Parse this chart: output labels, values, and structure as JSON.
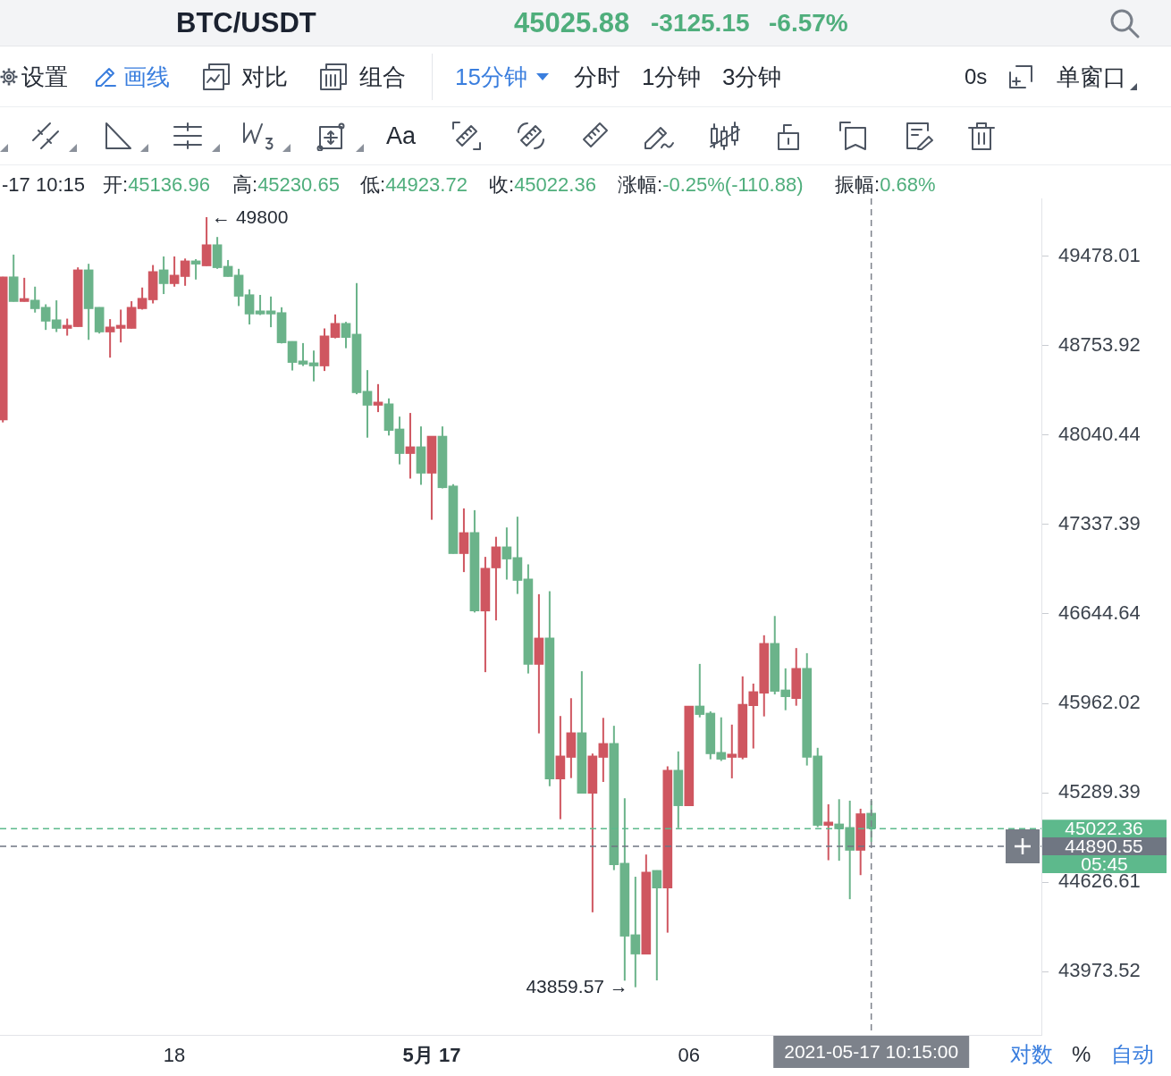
{
  "chart_data": {
    "type": "candlestick",
    "title": "BTC/USDT",
    "x": [
      "2021-05-16T14:00",
      "2021-05-16T14:15",
      "2021-05-16T14:30",
      "2021-05-16T14:45",
      "2021-05-16T15:00",
      "2021-05-16T15:15",
      "2021-05-16T15:30",
      "2021-05-16T15:45",
      "2021-05-16T16:00",
      "2021-05-16T16:15",
      "2021-05-16T16:30",
      "2021-05-16T16:45",
      "2021-05-16T17:00",
      "2021-05-16T17:15",
      "2021-05-16T17:30",
      "2021-05-16T17:45",
      "2021-05-16T18:00",
      "2021-05-16T18:15",
      "2021-05-16T18:30",
      "2021-05-16T18:45",
      "2021-05-16T19:00",
      "2021-05-16T19:15",
      "2021-05-16T19:30",
      "2021-05-16T19:45",
      "2021-05-16T20:00",
      "2021-05-16T20:15",
      "2021-05-16T20:30",
      "2021-05-16T20:45",
      "2021-05-16T21:00",
      "2021-05-16T21:15",
      "2021-05-16T21:30",
      "2021-05-16T21:45",
      "2021-05-16T22:00",
      "2021-05-16T22:15",
      "2021-05-16T22:30",
      "2021-05-16T22:45",
      "2021-05-16T23:00",
      "2021-05-16T23:15",
      "2021-05-16T23:30",
      "2021-05-16T23:45",
      "2021-05-17T00:00",
      "2021-05-17T00:15",
      "2021-05-17T00:30",
      "2021-05-17T00:45",
      "2021-05-17T01:00",
      "2021-05-17T01:15",
      "2021-05-17T01:30",
      "2021-05-17T01:45",
      "2021-05-17T02:00",
      "2021-05-17T02:15",
      "2021-05-17T02:30",
      "2021-05-17T02:45",
      "2021-05-17T03:00",
      "2021-05-17T03:15",
      "2021-05-17T03:30",
      "2021-05-17T03:45",
      "2021-05-17T04:00",
      "2021-05-17T04:15",
      "2021-05-17T04:30",
      "2021-05-17T04:45",
      "2021-05-17T05:00",
      "2021-05-17T05:15",
      "2021-05-17T05:30",
      "2021-05-17T05:45",
      "2021-05-17T06:00",
      "2021-05-17T06:15",
      "2021-05-17T06:30",
      "2021-05-17T06:45",
      "2021-05-17T07:00",
      "2021-05-17T07:15",
      "2021-05-17T07:30",
      "2021-05-17T07:45",
      "2021-05-17T08:00",
      "2021-05-17T08:15",
      "2021-05-17T08:30",
      "2021-05-17T08:45",
      "2021-05-17T09:00",
      "2021-05-17T09:15",
      "2021-05-17T09:30",
      "2021-05-17T09:45",
      "2021-05-17T10:00",
      "2021-05-17T10:15"
    ],
    "ohlc": [
      [
        48162,
        49312,
        48142,
        49312
      ],
      [
        49312,
        49493,
        49111,
        49111
      ],
      [
        49111,
        49304,
        49111,
        49136
      ],
      [
        49123,
        49232,
        49022,
        49053
      ],
      [
        49065,
        49089,
        48882,
        48952
      ],
      [
        48964,
        49121,
        48865,
        48894
      ],
      [
        48894,
        48973,
        48836,
        48920
      ],
      [
        48908,
        49389,
        48908,
        49369
      ],
      [
        49369,
        49418,
        48802,
        49053
      ],
      [
        49065,
        49065,
        48853,
        48865
      ],
      [
        48865,
        48969,
        48659,
        48906
      ],
      [
        48894,
        49046,
        48781,
        48920
      ],
      [
        48894,
        49114,
        48894,
        49065
      ],
      [
        49053,
        49225,
        49046,
        49138
      ],
      [
        49125,
        49408,
        49096,
        49355
      ],
      [
        49369,
        49478,
        49172,
        49256
      ],
      [
        49256,
        49478,
        49232,
        49326
      ],
      [
        49314,
        49461,
        49239,
        49442
      ],
      [
        49442,
        49456,
        49290,
        49415
      ],
      [
        49401,
        49800,
        49401,
        49574
      ],
      [
        49574,
        49637,
        49377,
        49386
      ],
      [
        49398,
        49449,
        49314,
        49314
      ],
      [
        49326,
        49377,
        49075,
        49154
      ],
      [
        49167,
        49210,
        48926,
        49010
      ],
      [
        49036,
        49165,
        49002,
        49010
      ],
      [
        49036,
        49152,
        48904,
        49010
      ],
      [
        49022,
        49065,
        48773,
        48778
      ],
      [
        48790,
        48790,
        48556,
        48620
      ],
      [
        48633,
        48776,
        48592,
        48606
      ],
      [
        48618,
        48716,
        48469,
        48592
      ],
      [
        48592,
        48894,
        48552,
        48834
      ],
      [
        48821,
        49007,
        48814,
        48935
      ],
      [
        48935,
        48947,
        48735,
        48821
      ],
      [
        48848,
        49261,
        48366,
        48378
      ],
      [
        48390,
        48559,
        48021,
        48278
      ],
      [
        48278,
        48447,
        48224,
        48304
      ],
      [
        48290,
        48333,
        48038,
        48078
      ],
      [
        48090,
        48188,
        47810,
        47895
      ],
      [
        47895,
        48217,
        47698,
        47949
      ],
      [
        47949,
        48110,
        47649,
        47740
      ],
      [
        47740,
        48033,
        47375,
        48033
      ],
      [
        48033,
        48110,
        47621,
        47626
      ],
      [
        47640,
        47654,
        47111,
        47111
      ],
      [
        47111,
        47464,
        46968,
        47275
      ],
      [
        47275,
        47450,
        46656,
        46667
      ],
      [
        46667,
        47086,
        46199,
        46998
      ],
      [
        47000,
        47242,
        46595,
        47164
      ],
      [
        47164,
        47315,
        46910,
        47069
      ],
      [
        47081,
        47399,
        46799,
        46903
      ],
      [
        46915,
        47028,
        46189,
        46258
      ],
      [
        46258,
        46797,
        45735,
        46460
      ],
      [
        46460,
        46820,
        45338,
        45392
      ],
      [
        45392,
        45866,
        45092,
        45565
      ],
      [
        45554,
        46001,
        45399,
        45740
      ],
      [
        45740,
        46206,
        45285,
        45285
      ],
      [
        45285,
        45583,
        44405,
        45565
      ],
      [
        45554,
        45852,
        45370,
        45659
      ],
      [
        45659,
        45792,
        44715,
        44754
      ],
      [
        44766,
        45248,
        43907,
        44230
      ],
      [
        44241,
        44666,
        43859.57,
        44100
      ],
      [
        44100,
        44830,
        44100,
        44700
      ],
      [
        44713,
        44713,
        43909,
        44583
      ],
      [
        44583,
        45487,
        44256,
        45458
      ],
      [
        45458,
        45599,
        45026,
        45192
      ],
      [
        45192,
        45942,
        45192,
        45942
      ],
      [
        45942,
        46262,
        45856,
        45877
      ],
      [
        45888,
        45901,
        45540,
        45581
      ],
      [
        45592,
        45856,
        45527,
        45540
      ],
      [
        45554,
        45801,
        45397,
        45579
      ],
      [
        45554,
        46167,
        45540,
        45955
      ],
      [
        45944,
        46112,
        45621,
        46051
      ],
      [
        46039,
        46481,
        45863,
        46419
      ],
      [
        46419,
        46629,
        46030,
        46053
      ],
      [
        46064,
        46228,
        45910,
        46012
      ],
      [
        45998,
        46383,
        45944,
        46228
      ],
      [
        46228,
        46344,
        45493,
        45554
      ],
      [
        45565,
        45626,
        45033,
        45046
      ],
      [
        45046,
        45203,
        44788,
        45071
      ],
      [
        45057,
        45241,
        44784,
        45020
      ],
      [
        45031,
        45230,
        44501,
        44861
      ],
      [
        44861,
        45170,
        44678,
        45133
      ],
      [
        45136.96,
        45230.65,
        44923.72,
        45022.36
      ]
    ],
    "colors": [
      "#cf5660",
      "#6bb38a",
      "#cf5660",
      "#6bb38a",
      "#6bb38a",
      "#6bb38a",
      "#cf5660",
      "#cf5660",
      "#6bb38a",
      "#6bb38a",
      "#cf5660",
      "#cf5660",
      "#cf5660",
      "#cf5660",
      "#cf5660",
      "#6bb38a",
      "#cf5660",
      "#cf5660",
      "#6bb38a",
      "#cf5660",
      "#6bb38a",
      "#6bb38a",
      "#6bb38a",
      "#6bb38a",
      "#6bb38a",
      "#6bb38a",
      "#6bb38a",
      "#6bb38a",
      "#6bb38a",
      "#6bb38a",
      "#cf5660",
      "#cf5660",
      "#6bb38a",
      "#6bb38a",
      "#6bb38a",
      "#cf5660",
      "#6bb38a",
      "#6bb38a",
      "#cf5660",
      "#6bb38a",
      "#cf5660",
      "#6bb38a",
      "#6bb38a",
      "#cf5660",
      "#6bb38a",
      "#cf5660",
      "#cf5660",
      "#6bb38a",
      "#6bb38a",
      "#6bb38a",
      "#cf5660",
      "#6bb38a",
      "#cf5660",
      "#cf5660",
      "#6bb38a",
      "#cf5660",
      "#cf5660",
      "#6bb38a",
      "#6bb38a",
      "#6bb38a",
      "#cf5660",
      "#6bb38a",
      "#cf5660",
      "#6bb38a",
      "#cf5660",
      "#6bb38a",
      "#6bb38a",
      "#6bb38a",
      "#cf5660",
      "#cf5660",
      "#cf5660",
      "#cf5660",
      "#6bb38a",
      "#6bb38a",
      "#cf5660",
      "#6bb38a",
      "#6bb38a",
      "#cf5660",
      "#6bb38a",
      "#6bb38a",
      "#cf5660",
      "#6bb38a"
    ],
    "xlim": [
      "2021-05-16T13:56",
      "2021-05-17T14:13"
    ],
    "xticks": [
      {
        "value": "2021-05-16T18:00",
        "label": "18"
      },
      {
        "value": "2021-05-17T00:00",
        "label": "5月 17"
      },
      {
        "value": "2021-05-17T06:00",
        "label": "06"
      }
    ],
    "ylim": [
      43516,
      49954
    ],
    "yticks": [
      43973.52,
      44626.61,
      45289.39,
      45962.02,
      46644.64,
      47337.39,
      48040.44,
      48753.92,
      49478.01
    ],
    "log": true,
    "ref_lines": [
      {
        "axis": "y",
        "value": 45022.36,
        "label": "45022.36",
        "color": "#5db98c",
        "line_style": "dashed"
      },
      {
        "axis": "y",
        "value": 44890.55,
        "label": "44890.55",
        "color": "#6f7682",
        "line_style": "dashed"
      },
      {
        "axis": "x",
        "value": "2021-05-17T10:15",
        "label": "2021-05-17 10:15:00",
        "color": "#7d828b",
        "line_style": "dashed"
      }
    ],
    "annotations": [
      {
        "text": "← 49800",
        "x": "2021-05-16T18:45",
        "y": 49800
      },
      {
        "text": "43859.57 →",
        "x": "2021-05-17T04:45",
        "y": 43859.57
      },
      "45025.88",
      "-3125.15",
      "-6.57%",
      "设置",
      "画线",
      "对比",
      "组合",
      "15分钟",
      "分时",
      "1分钟",
      "3分钟",
      "0s",
      "单窗口",
      "Aa",
      "-17 10:15",
      "开:45136.96",
      "高:45230.65",
      "低:44923.72",
      "收:45022.36",
      "涨幅:-0.25%(-110.88)",
      "振幅:0.68%",
      "05:45",
      "对数",
      "%",
      "自动"
    ]
  }
}
